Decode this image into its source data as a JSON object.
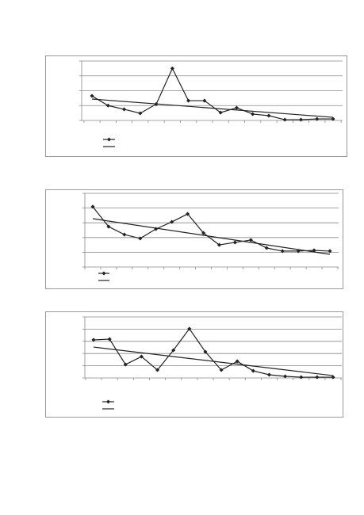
{
  "chart_data": [
    {
      "type": "line",
      "ylim": [
        0,
        4
      ],
      "yticks": [
        0,
        1,
        2,
        3,
        4
      ],
      "grid": true,
      "series": [
        {
          "color": "#222222",
          "values": [
            1.65,
            1.0,
            0.75,
            0.48,
            1.1,
            3.5,
            1.33,
            1.33,
            0.53,
            0.85,
            0.43,
            0.32,
            0.05,
            0.05,
            0.1,
            0.1
          ]
        }
      ],
      "trend": {
        "color": "#222222",
        "values": [
          1.44,
          0.21
        ]
      }
    },
    {
      "type": "line",
      "ylim": [
        0,
        5
      ],
      "yticks": [
        0,
        1,
        2,
        3,
        4,
        5
      ],
      "grid": true,
      "series": [
        {
          "color": "#222222",
          "values": [
            4.09,
            2.74,
            2.2,
            1.94,
            2.58,
            3.06,
            3.6,
            2.31,
            1.5,
            1.67,
            1.83,
            1.29,
            1.08,
            1.08,
            1.13,
            1.08
          ]
        }
      ],
      "trend": {
        "color": "#222222",
        "values": [
          3.28,
          0.86
        ]
      }
    },
    {
      "type": "line",
      "ylim": [
        0,
        5
      ],
      "yticks": [
        0,
        1,
        2,
        3,
        4,
        5
      ],
      "grid": true,
      "series": [
        {
          "color": "#222222",
          "values": [
            3.12,
            3.18,
            1.1,
            1.75,
            0.65,
            2.27,
            4.03,
            2.14,
            0.65,
            1.36,
            0.58,
            0.26,
            0.13,
            0.06,
            0.06,
            0.06
          ]
        }
      ],
      "trend": {
        "color": "#222222",
        "values": [
          2.53,
          0.19
        ]
      }
    }
  ]
}
